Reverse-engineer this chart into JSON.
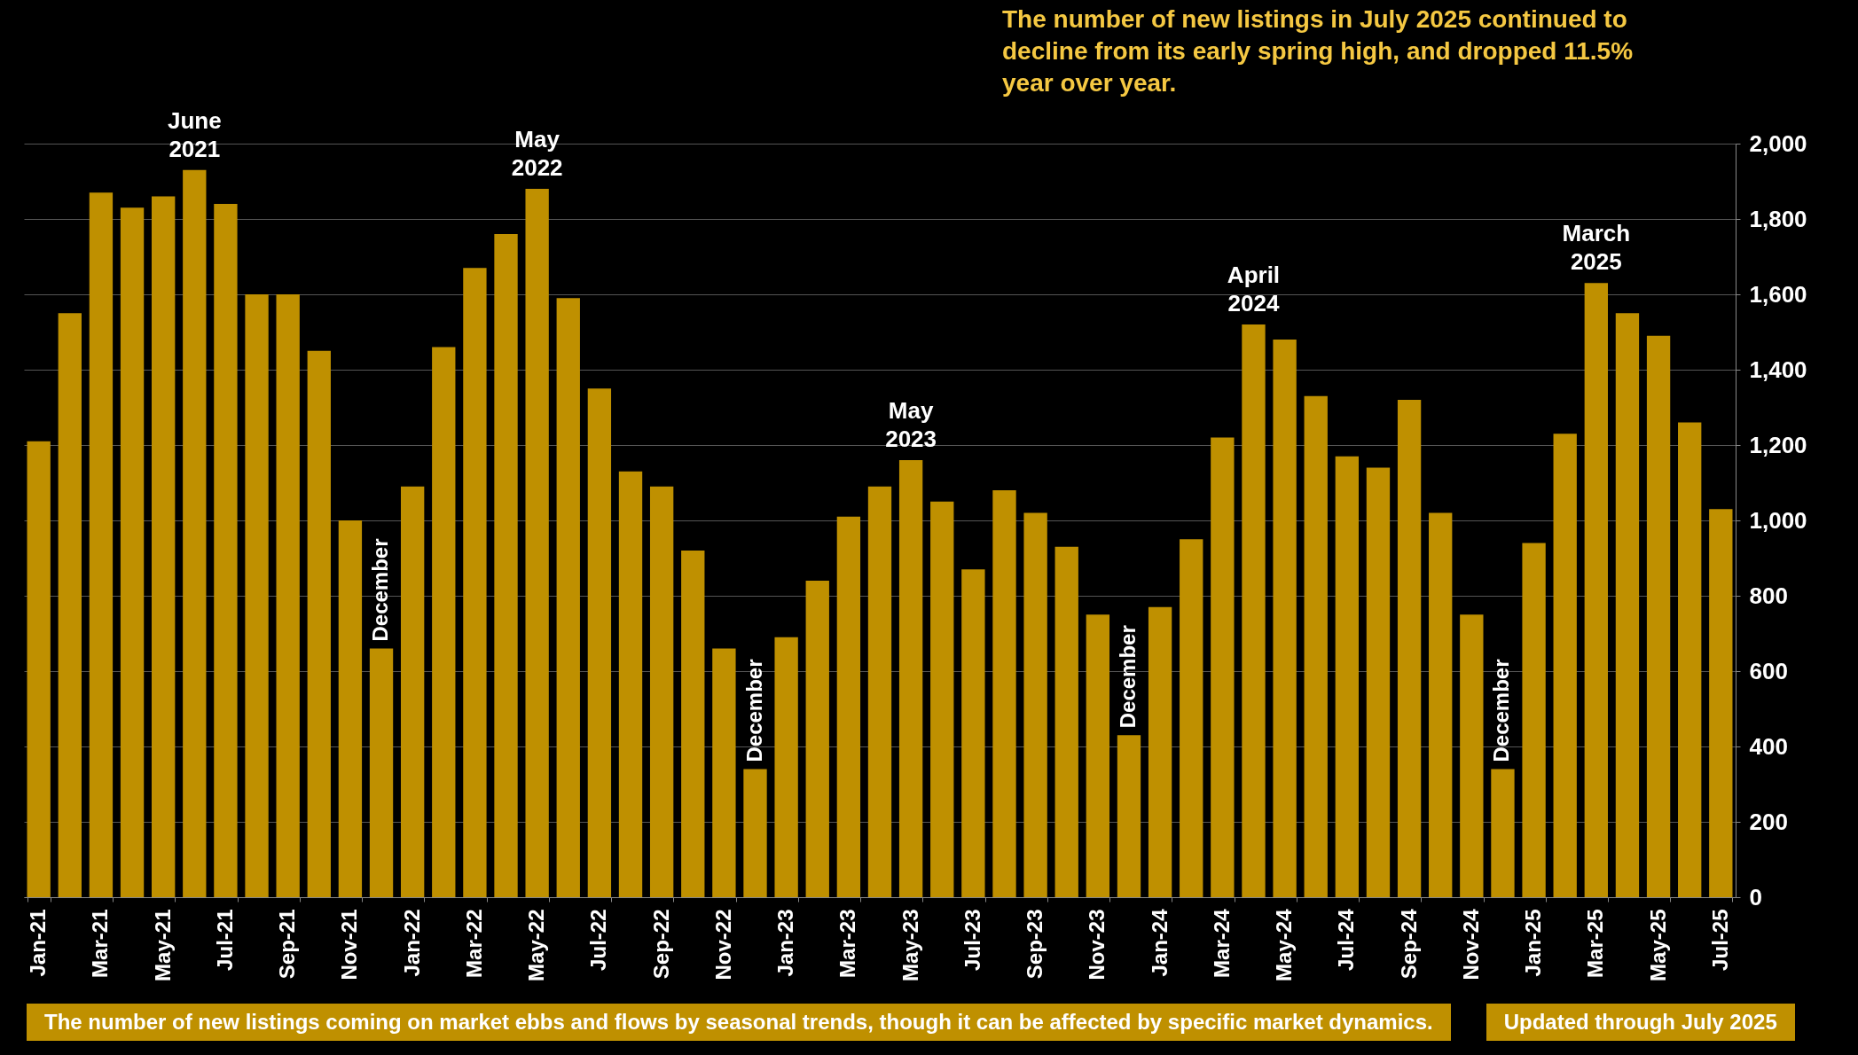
{
  "chart_data": {
    "type": "bar",
    "x": [
      "2021-01",
      "2021-02",
      "2021-03",
      "2021-04",
      "2021-05",
      "2021-06",
      "2021-07",
      "2021-08",
      "2021-09",
      "2021-10",
      "2021-11",
      "2021-12",
      "2022-01",
      "2022-02",
      "2022-03",
      "2022-04",
      "2022-05",
      "2022-06",
      "2022-07",
      "2022-08",
      "2022-09",
      "2022-10",
      "2022-11",
      "2022-12",
      "2023-01",
      "2023-02",
      "2023-03",
      "2023-04",
      "2023-05",
      "2023-06",
      "2023-07",
      "2023-08",
      "2023-09",
      "2023-10",
      "2023-11",
      "2023-12",
      "2024-01",
      "2024-02",
      "2024-03",
      "2024-04",
      "2024-05",
      "2024-06",
      "2024-07",
      "2024-08",
      "2024-09",
      "2024-10",
      "2024-11",
      "2024-12",
      "2025-01",
      "2025-02",
      "2025-03",
      "2025-04",
      "2025-05",
      "2025-06",
      "2025-07"
    ],
    "values": [
      1210,
      1550,
      1870,
      1830,
      1860,
      1930,
      1840,
      1600,
      1600,
      1450,
      1000,
      660,
      1090,
      1460,
      1670,
      1760,
      1880,
      1590,
      1350,
      1130,
      1090,
      920,
      660,
      340,
      690,
      840,
      1010,
      1090,
      1160,
      1050,
      870,
      1080,
      1020,
      930,
      750,
      430,
      770,
      950,
      1220,
      1520,
      1480,
      1330,
      1170,
      1140,
      1320,
      1020,
      750,
      340,
      940,
      1230,
      1630,
      1550,
      1490,
      1260,
      1030
    ],
    "color": "#bf9000",
    "ylim": [
      0,
      2000
    ],
    "yticks": [
      {
        "value": 0,
        "label": "0"
      },
      {
        "value": 200,
        "label": "200"
      },
      {
        "value": 400,
        "label": "400"
      },
      {
        "value": 600,
        "label": "600"
      },
      {
        "value": 800,
        "label": "800"
      },
      {
        "value": 1000,
        "label": "1,000"
      },
      {
        "value": 1200,
        "label": "1,200"
      },
      {
        "value": 1400,
        "label": "1,400"
      },
      {
        "value": 1600,
        "label": "1,600"
      },
      {
        "value": 1800,
        "label": "1,800"
      },
      {
        "value": 2000,
        "label": "2,000"
      }
    ],
    "xticks": [
      {
        "value": "2021-01",
        "label": "Jan-21"
      },
      {
        "value": "2021-03",
        "label": "Mar-21"
      },
      {
        "value": "2021-05",
        "label": "May-21"
      },
      {
        "value": "2021-07",
        "label": "Jul-21"
      },
      {
        "value": "2021-09",
        "label": "Sep-21"
      },
      {
        "value": "2021-11",
        "label": "Nov-21"
      },
      {
        "value": "2022-01",
        "label": "Jan-22"
      },
      {
        "value": "2022-03",
        "label": "Mar-22"
      },
      {
        "value": "2022-05",
        "label": "May-22"
      },
      {
        "value": "2022-07",
        "label": "Jul-22"
      },
      {
        "value": "2022-09",
        "label": "Sep-22"
      },
      {
        "value": "2022-11",
        "label": "Nov-22"
      },
      {
        "value": "2023-01",
        "label": "Jan-23"
      },
      {
        "value": "2023-03",
        "label": "Mar-23"
      },
      {
        "value": "2023-05",
        "label": "May-23"
      },
      {
        "value": "2023-07",
        "label": "Jul-23"
      },
      {
        "value": "2023-09",
        "label": "Sep-23"
      },
      {
        "value": "2023-11",
        "label": "Nov-23"
      },
      {
        "value": "2024-01",
        "label": "Jan-24"
      },
      {
        "value": "2024-03",
        "label": "Mar-24"
      },
      {
        "value": "2024-05",
        "label": "May-24"
      },
      {
        "value": "2024-07",
        "label": "Jul-24"
      },
      {
        "value": "2024-09",
        "label": "Sep-24"
      },
      {
        "value": "2024-11",
        "label": "Nov-24"
      },
      {
        "value": "2025-01",
        "label": "Jan-25"
      },
      {
        "value": "2025-03",
        "label": "Mar-25"
      },
      {
        "value": "2025-05",
        "label": "May-25"
      },
      {
        "value": "2025-07",
        "label": "Jul-25"
      }
    ],
    "xlim": [
      "2020-12-17",
      "2025-07-21"
    ],
    "grid": "y",
    "annotations": [
      "The number of new listings in July 2025 continued to decline from its early spring high, and dropped 11.5% year over year.",
      {
        "text": "June 2021",
        "x": "2021-06",
        "y": 1930
      },
      {
        "text": "December",
        "x": "2021-12",
        "y": 660
      },
      {
        "text": "May 2022",
        "x": "2022-05",
        "y": 1880
      },
      {
        "text": "December",
        "x": "2022-12",
        "y": 340
      },
      {
        "text": "May 2023",
        "x": "2023-05",
        "y": 1160
      },
      {
        "text": "December",
        "x": "2023-12",
        "y": 430
      },
      {
        "text": "April 2024",
        "x": "2024-04",
        "y": 1520
      },
      {
        "text": "December",
        "x": "2024-12",
        "y": 340
      },
      {
        "text": "March 2025",
        "x": "2025-03",
        "y": 1630
      },
      "The number of new listings coming on market ebbs and flows by seasonal trends, though it can be affected by specific market dynamics.",
      "Updated through July 2025"
    ]
  }
}
